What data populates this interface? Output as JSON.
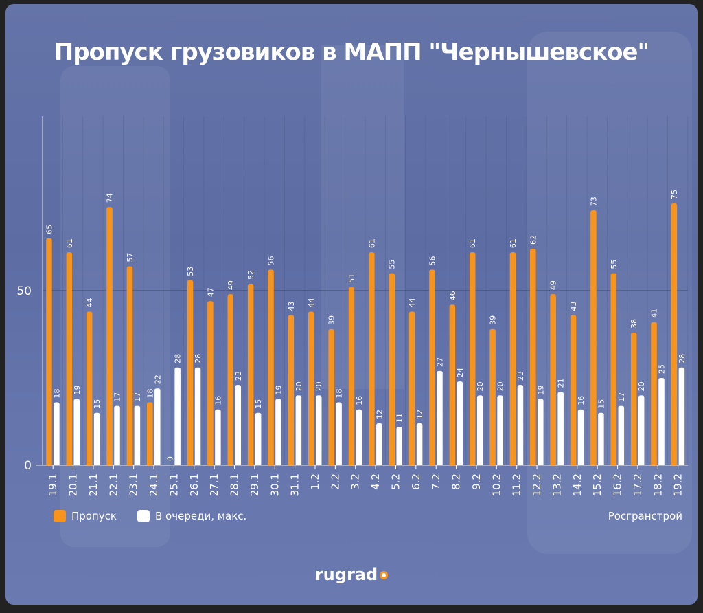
{
  "chart_data": {
    "type": "bar",
    "title": "Пропуск грузовиков в МАПП \"Чернышевское\"",
    "categories": [
      "19.1",
      "20.1",
      "21.1",
      "22.1",
      "23.1",
      "24.1",
      "25.1",
      "26.1",
      "27.1",
      "28.1",
      "29.1",
      "30.1",
      "31.1",
      "1.2",
      "2.2",
      "3.2",
      "4.2",
      "5.2",
      "6.2",
      "7.2",
      "8.2",
      "9.2",
      "10.2",
      "11.2",
      "12.2",
      "13.2",
      "14.2",
      "15.2",
      "16.2",
      "17.2",
      "18.2",
      "19.2"
    ],
    "series": [
      {
        "name": "Пропуск",
        "color": "#f7941d",
        "values": [
          65,
          61,
          44,
          74,
          57,
          18,
          0,
          53,
          47,
          49,
          52,
          56,
          43,
          44,
          39,
          51,
          61,
          55,
          44,
          56,
          46,
          61,
          39,
          61,
          62,
          49,
          43,
          73,
          55,
          38,
          41,
          75
        ]
      },
      {
        "name": "В очереди, макс.",
        "color": "#ffffff",
        "values": [
          18,
          19,
          15,
          17,
          17,
          22,
          28,
          28,
          16,
          23,
          15,
          19,
          20,
          20,
          18,
          16,
          12,
          11,
          12,
          27,
          24,
          20,
          20,
          23,
          19,
          21,
          16,
          15,
          17,
          20,
          25,
          28
        ]
      }
    ],
    "yticks": [
      "0",
      "50"
    ],
    "ylim": [
      0,
      100
    ],
    "grid": true,
    "legend": "bottom-left",
    "source": "Росгранстрой"
  },
  "logo": "rugrad"
}
